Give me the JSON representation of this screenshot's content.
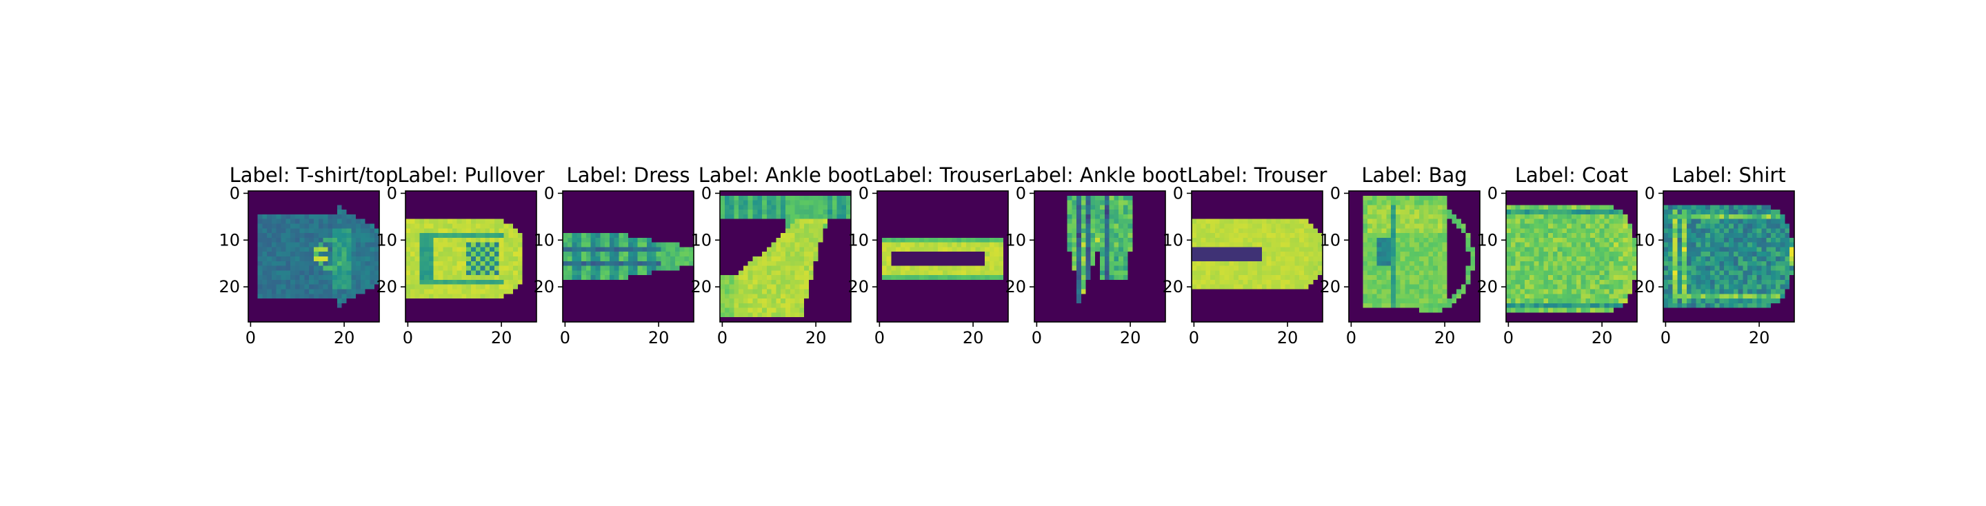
{
  "chart_data": {
    "type": "heatmap",
    "colormap": "viridis",
    "image_shape": [
      28,
      28
    ],
    "xlim": [
      -0.5,
      27.5
    ],
    "ylim": [
      27.5,
      -0.5
    ],
    "x_ticks": [
      0,
      20
    ],
    "y_ticks": [
      0,
      10,
      20
    ],
    "panels": [
      {
        "title": "Label: T-shirt/top",
        "shape": "tshirt"
      },
      {
        "title": "Label: Pullover",
        "shape": "pullover"
      },
      {
        "title": "Label: Dress",
        "shape": "dress"
      },
      {
        "title": "Label: Ankle boot",
        "shape": "boot1"
      },
      {
        "title": "Label: Trouser",
        "shape": "trouser1"
      },
      {
        "title": "Label: Ankle boot",
        "shape": "boot2"
      },
      {
        "title": "Label: Trouser",
        "shape": "trouser2"
      },
      {
        "title": "Label: Bag",
        "shape": "bag"
      },
      {
        "title": "Label: Coat",
        "shape": "coat"
      },
      {
        "title": "Label: Shirt",
        "shape": "shirt"
      }
    ]
  }
}
